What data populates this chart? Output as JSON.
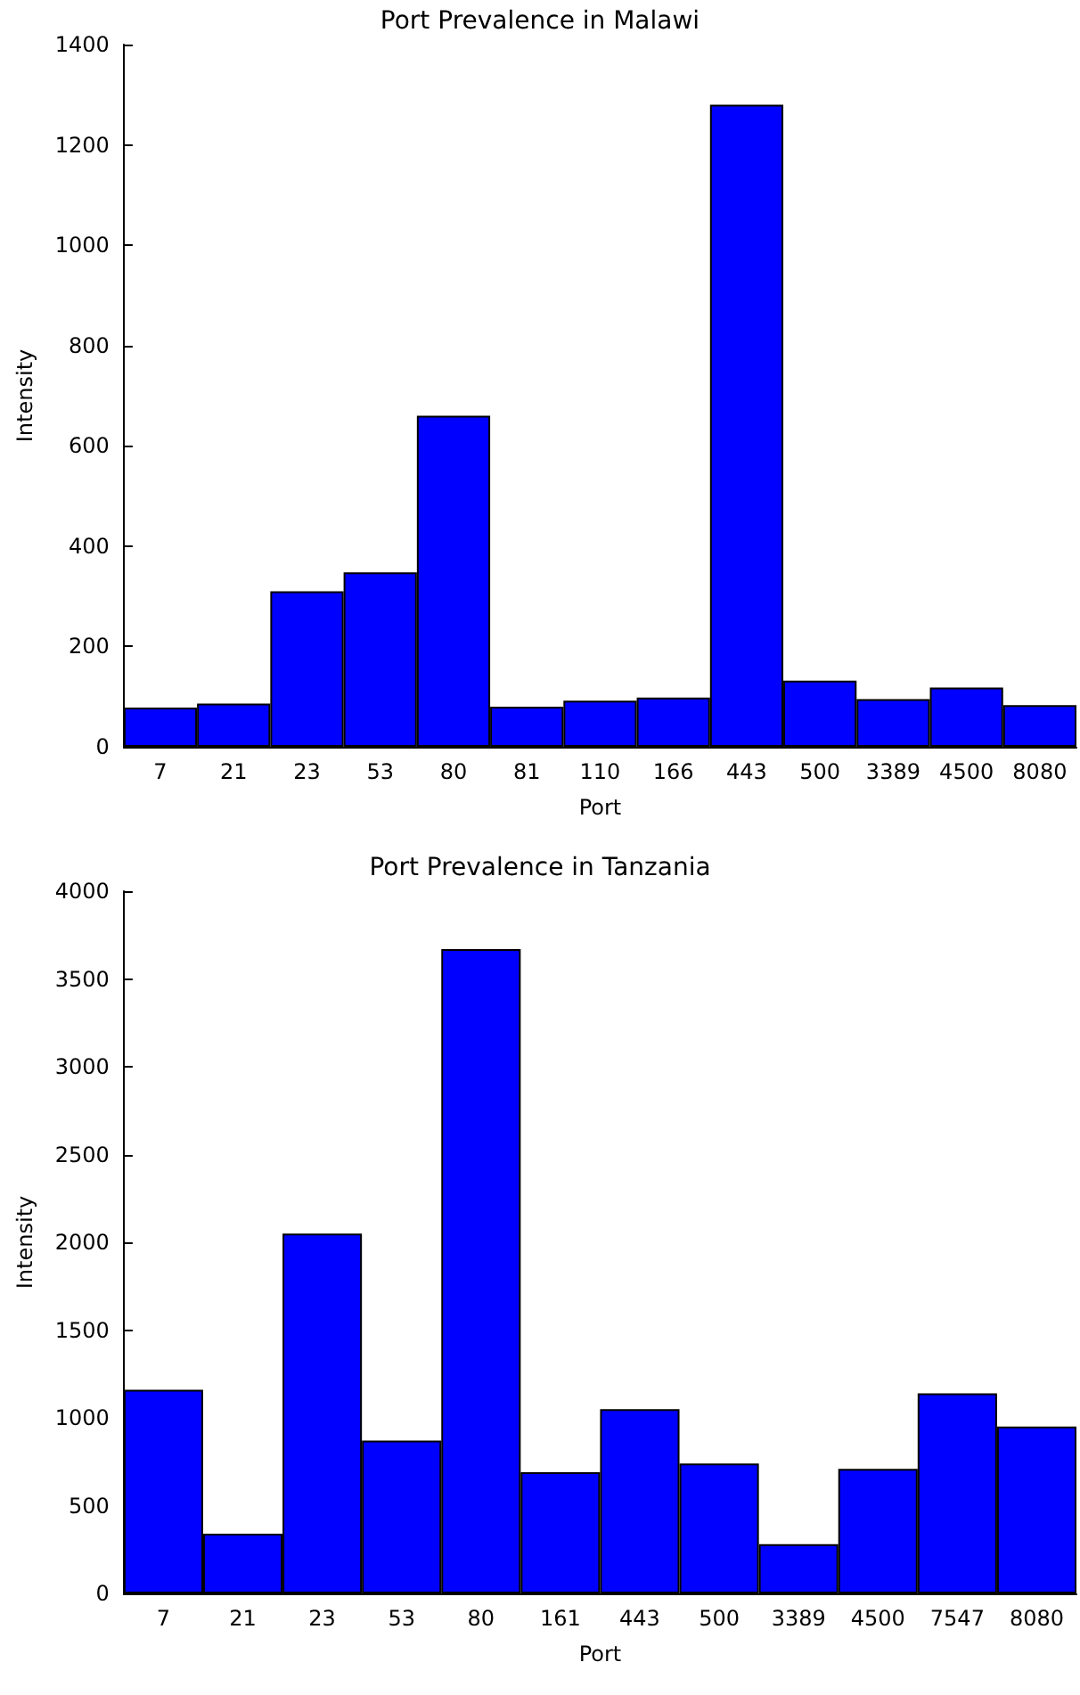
{
  "chart_data": [
    {
      "type": "bar",
      "title": "Port Prevalence in Malawi",
      "xlabel": "Port",
      "ylabel": "Intensity",
      "categories": [
        "7",
        "21",
        "23",
        "53",
        "80",
        "81",
        "110",
        "166",
        "443",
        "500",
        "3389",
        "4500",
        "8080"
      ],
      "values": [
        78,
        86,
        310,
        348,
        660,
        80,
        92,
        98,
        1280,
        132,
        95,
        118,
        83
      ],
      "color": "#0000ff",
      "ylim": [
        0,
        1400
      ],
      "yticks": [
        0,
        200,
        400,
        600,
        800,
        1000,
        1200,
        1400
      ]
    },
    {
      "type": "bar",
      "title": "Port Prevalence in Tanzania",
      "xlabel": "Port",
      "ylabel": "Intensity",
      "categories": [
        "7",
        "21",
        "23",
        "53",
        "80",
        "161",
        "443",
        "500",
        "3389",
        "4500",
        "7547",
        "8080"
      ],
      "values": [
        1160,
        340,
        2050,
        870,
        3670,
        690,
        1050,
        740,
        280,
        710,
        1140,
        950
      ],
      "color": "#0000ff",
      "ylim": [
        0,
        4000
      ],
      "yticks": [
        0,
        500,
        1000,
        1500,
        2000,
        2500,
        3000,
        3500,
        4000
      ]
    }
  ]
}
